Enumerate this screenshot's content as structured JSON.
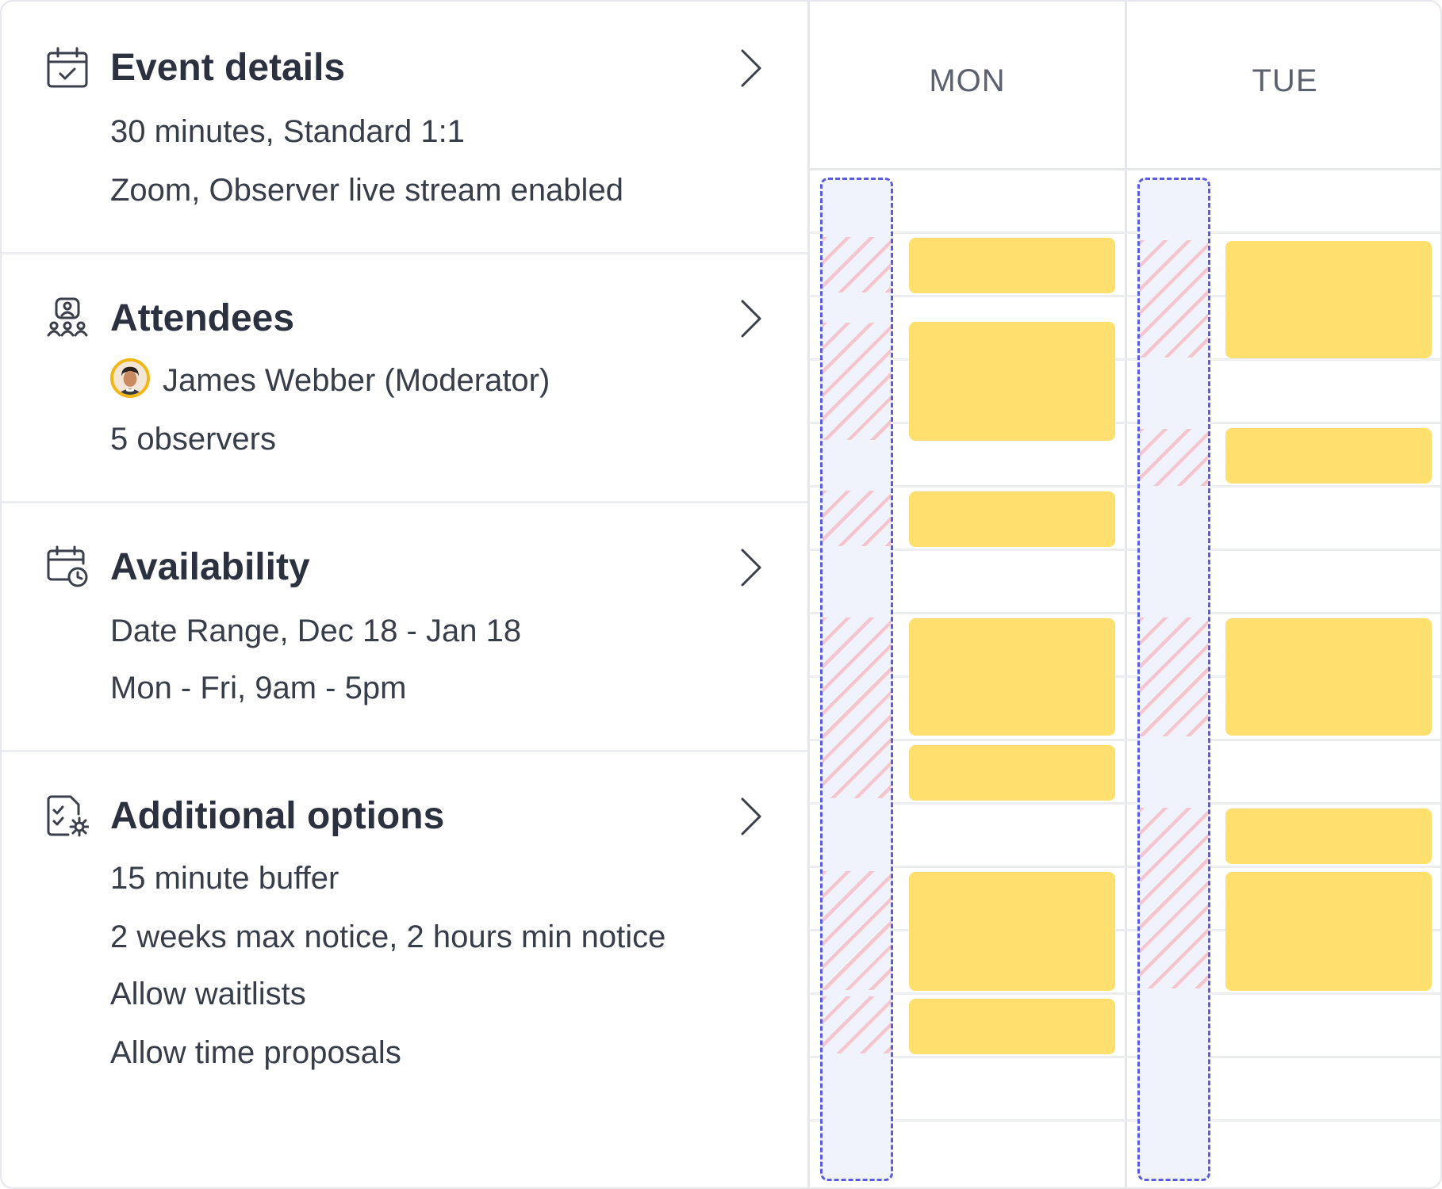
{
  "sections": [
    {
      "title": "Event details",
      "icon": "calendar-check-icon",
      "lines": [
        "30 minutes, Standard 1:1",
        "Zoom, Observer live stream enabled"
      ]
    },
    {
      "title": "Attendees",
      "icon": "attendees-group-icon",
      "moderator": "James Webber (Moderator)",
      "lines": [
        "5 observers"
      ]
    },
    {
      "title": "Availability",
      "icon": "calendar-clock-icon",
      "lines": [
        "Date Range, Dec 18 - Jan 18",
        "Mon - Fri, 9am - 5pm"
      ]
    },
    {
      "title": "Additional options",
      "icon": "checklist-gear-icon",
      "lines": [
        "15 minute buffer",
        "2 weeks max notice, 2 hours min notice",
        "Allow waitlists",
        "Allow time proposals"
      ]
    }
  ],
  "calendar": {
    "days": [
      "MON",
      "TUE"
    ]
  },
  "colors": {
    "event": "#ffe06e",
    "availability_border": "#5a5ce0",
    "availability_fill": "#f1f3fc",
    "blocked_hatch": "#f2c5cf",
    "avatar_ring": "#f2b715"
  }
}
